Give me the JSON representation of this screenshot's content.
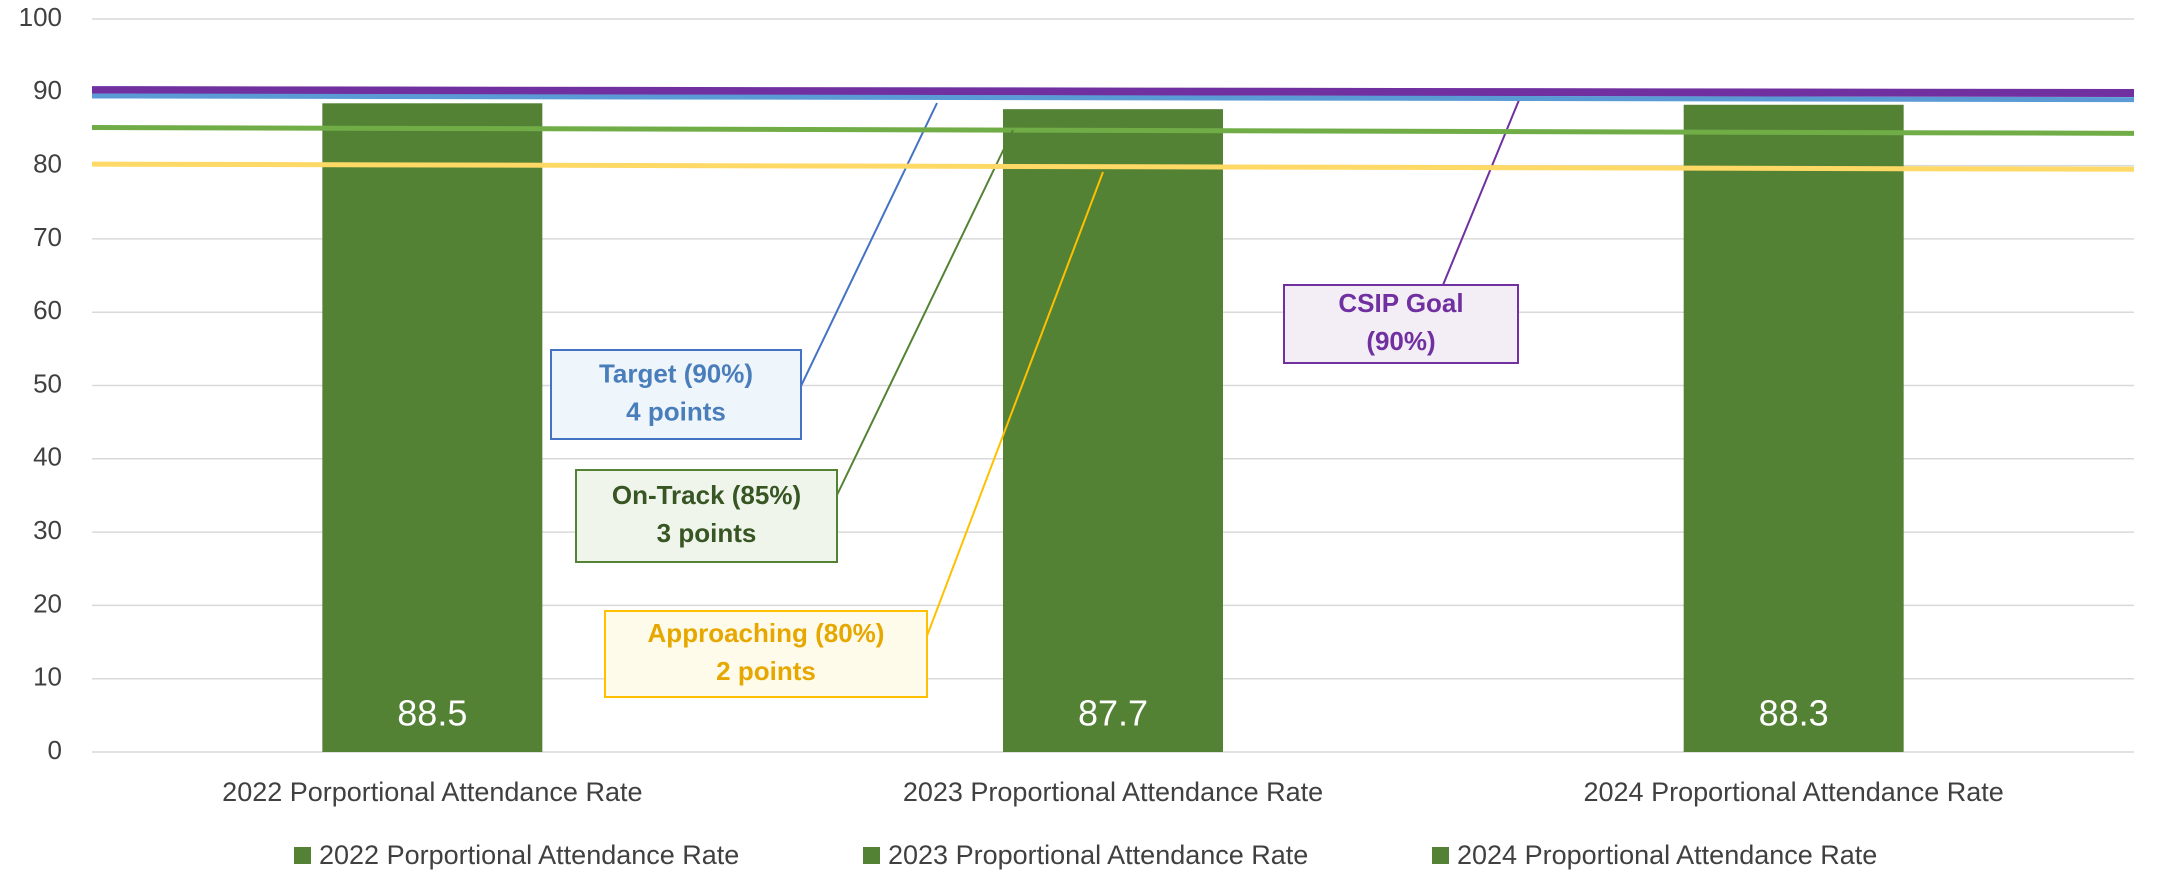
{
  "chart_data": {
    "type": "bar",
    "categories": [
      "2022 Porportional Attendance Rate",
      "2023 Proportional Attendance Rate",
      "2024 Proportional Attendance Rate"
    ],
    "series": [
      {
        "name": "2022 Porportional Attendance Rate",
        "color": "#548235",
        "values": [
          88.5,
          null,
          null
        ]
      },
      {
        "name": "2023 Proportional Attendance Rate",
        "color": "#548235",
        "values": [
          null,
          87.7,
          null
        ]
      },
      {
        "name": "2024 Proportional Attendance Rate",
        "color": "#548235",
        "values": [
          null,
          null,
          88.3
        ]
      }
    ],
    "ylim": [
      0,
      100
    ],
    "yticks": [
      0,
      10,
      20,
      30,
      40,
      50,
      60,
      70,
      80,
      90,
      100
    ],
    "grid": true,
    "legend": "bottom",
    "lines": [
      {
        "color": "#7030a0",
        "values": [
          90.3,
          89.9
        ],
        "label": [
          "CSIP Goal",
          "(90%)"
        ]
      },
      {
        "color": "#5b9bd5",
        "values": [
          89.5,
          89.0
        ],
        "label": [
          "Target (90%)",
          "4 points"
        ]
      },
      {
        "color": "#70ad47",
        "values": [
          85.2,
          84.4
        ],
        "label": [
          "On-Track (85%)",
          "3 points"
        ]
      },
      {
        "color": "#ffd966",
        "values": [
          80.2,
          79.5
        ],
        "label": [
          "Approaching (80%)",
          "2 points"
        ]
      }
    ]
  }
}
